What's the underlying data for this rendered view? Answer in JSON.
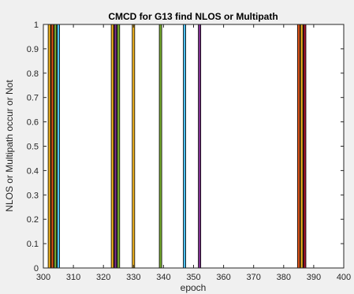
{
  "chart_data": {
    "type": "bar",
    "title": "CMCD for G13 find NLOS or Multipath",
    "xlabel": "epoch",
    "ylabel": "NLOS or Multipath occur or Not",
    "xlim": [
      300,
      400
    ],
    "ylim": [
      0,
      1
    ],
    "xticks": [
      "300",
      "310",
      "320",
      "330",
      "340",
      "350",
      "360",
      "370",
      "380",
      "390",
      "400"
    ],
    "yticks": [
      "0",
      "0.1",
      "0.2",
      "0.3",
      "0.4",
      "0.5",
      "0.6",
      "0.7",
      "0.8",
      "0.9",
      "1"
    ],
    "grid": false,
    "bars": [
      {
        "x": 302,
        "value": 1,
        "color": "#EDB120"
      },
      {
        "x": 303,
        "value": 1,
        "color": "#D95319"
      },
      {
        "x": 304,
        "value": 1,
        "color": "#77AC30"
      },
      {
        "x": 305,
        "value": 1,
        "color": "#4DBEEE"
      },
      {
        "x": 323,
        "value": 1,
        "color": "#EDB120"
      },
      {
        "x": 324,
        "value": 1,
        "color": "#7E2F8E"
      },
      {
        "x": 325,
        "value": 1,
        "color": "#77AC30"
      },
      {
        "x": 330,
        "value": 1,
        "color": "#EDB120"
      },
      {
        "x": 339,
        "value": 1,
        "color": "#77AC30"
      },
      {
        "x": 347,
        "value": 1,
        "color": "#4DBEEE"
      },
      {
        "x": 352,
        "value": 1,
        "color": "#7E2F8E"
      },
      {
        "x": 385,
        "value": 1,
        "color": "#D95319"
      },
      {
        "x": 386,
        "value": 1,
        "color": "#EDB120"
      },
      {
        "x": 387,
        "value": 1,
        "color": "#A2142F"
      }
    ]
  }
}
